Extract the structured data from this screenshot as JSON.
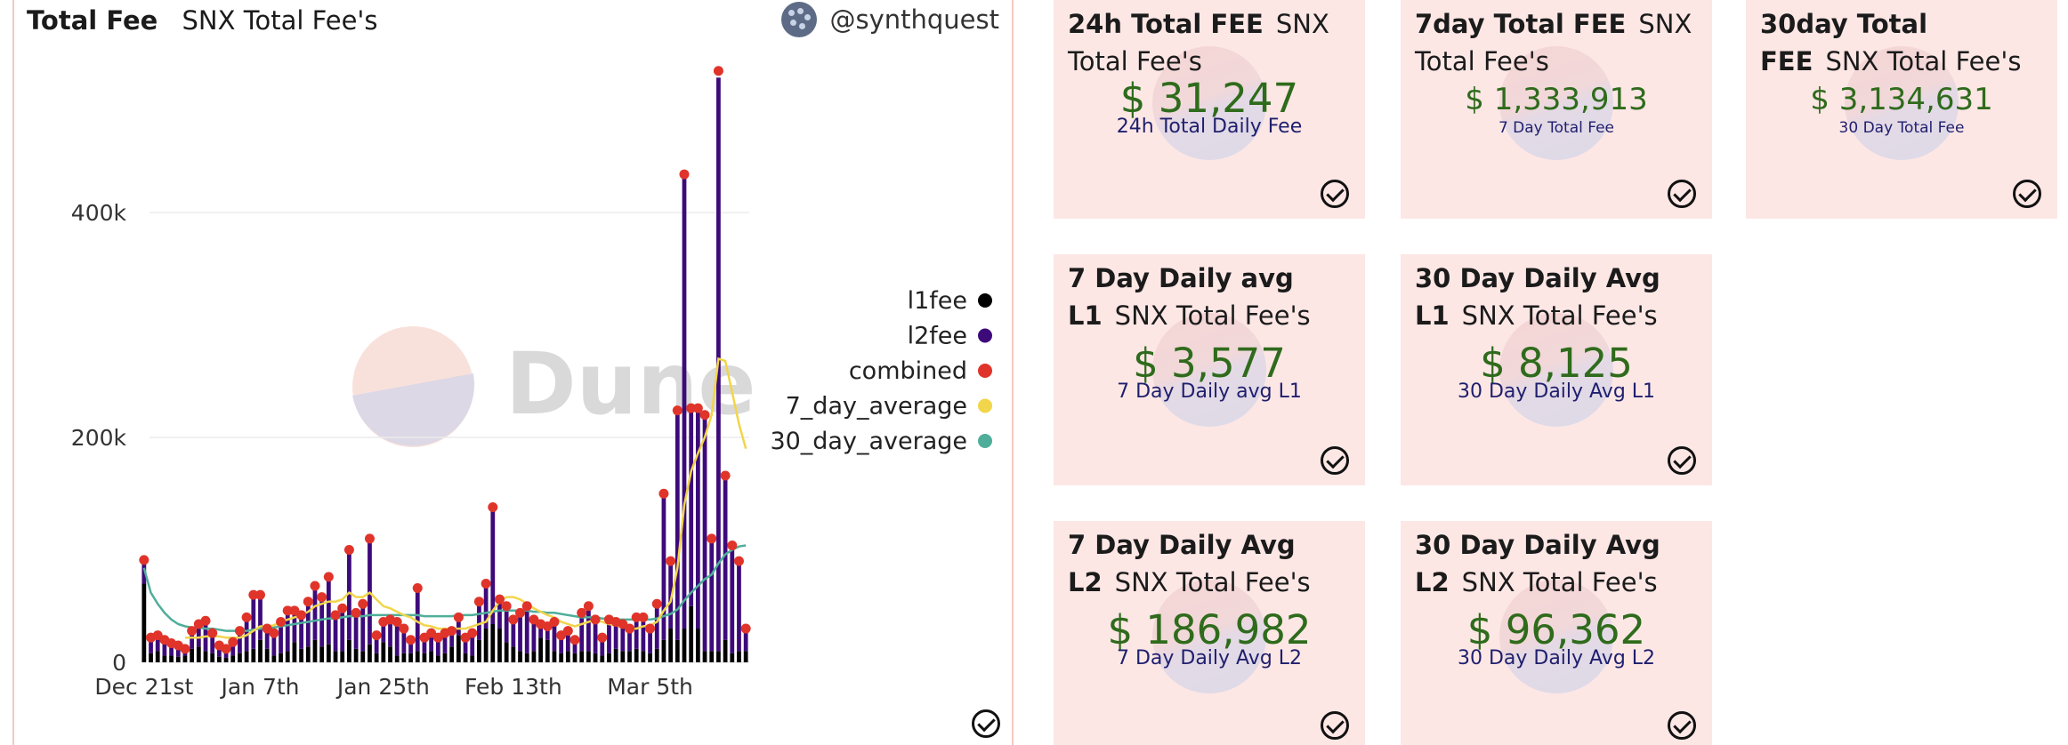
{
  "chart_panel": {
    "title": "Total Fee",
    "subtitle": "SNX Total Fee's",
    "author": "@synthquest",
    "watermark": "Dune",
    "colors": {
      "l1fee": "#000000",
      "l2fee": "#3d0a7a",
      "combined": "#e0342a",
      "seven_day": "#f1d54b",
      "thirty_day": "#4fae9a"
    }
  },
  "chart_data": {
    "type": "bar",
    "title": "",
    "xlabel": "",
    "ylabel": "",
    "ylim": [
      0,
      540000
    ],
    "yticks": [
      0,
      200000,
      400000
    ],
    "ytick_labels": [
      "0",
      "200k",
      "400k"
    ],
    "xtick_labels": [
      "Dec 21st",
      "Jan 7th",
      "Jan 25th",
      "Feb 13th",
      "Mar 5th"
    ],
    "xtick_indices": [
      0,
      17,
      35,
      54,
      74
    ],
    "legend_position": "right",
    "legend": [
      "l1fee",
      "l2fee",
      "combined",
      "7_day_average",
      "30_day_average"
    ],
    "series": [
      {
        "name": "l1fee",
        "values": [
          70000,
          8000,
          10000,
          6000,
          6000,
          5000,
          6000,
          12000,
          14000,
          10000,
          8000,
          5000,
          4000,
          6000,
          8000,
          10000,
          12000,
          20000,
          12000,
          6000,
          8000,
          10000,
          18000,
          12000,
          14000,
          20000,
          14000,
          16000,
          10000,
          10000,
          20000,
          12000,
          10000,
          16000,
          8000,
          18000,
          14000,
          6000,
          8000,
          8000,
          10000,
          8000,
          10000,
          6000,
          8000,
          14000,
          24000,
          8000,
          6000,
          20000,
          30000,
          34000,
          30000,
          18000,
          14000,
          10000,
          8000,
          10000,
          22000,
          20000,
          10000,
          8000,
          10000,
          8000,
          10000,
          10000,
          8000,
          6000,
          8000,
          12000,
          10000,
          10000,
          12000,
          10000,
          8000,
          12000,
          20000,
          30000,
          20000,
          30000,
          50000,
          30000,
          10000,
          10000,
          10000,
          20000,
          8000,
          10000,
          10000
        ]
      },
      {
        "name": "l2fee",
        "values": [
          21000,
          14000,
          14000,
          14000,
          11000,
          10000,
          6000,
          16000,
          20000,
          27000,
          18000,
          10000,
          8000,
          12000,
          20000,
          30000,
          48000,
          40000,
          18000,
          20000,
          28000,
          36000,
          28000,
          30000,
          40000,
          48000,
          44000,
          60000,
          32000,
          38000,
          80000,
          32000,
          42000,
          94000,
          16000,
          18000,
          24000,
          30000,
          22000,
          12000,
          56000,
          14000,
          16000,
          16000,
          18000,
          14000,
          16000,
          14000,
          20000,
          34000,
          40000,
          104000,
          26000,
          32000,
          24000,
          34000,
          42000,
          28000,
          12000,
          12000,
          26000,
          16000,
          18000,
          12000,
          34000,
          40000,
          30000,
          16000,
          30000,
          24000,
          24000,
          20000,
          28000,
          30000,
          22000,
          40000,
          130000,
          60000,
          204000,
          404000,
          176000,
          196000,
          210000,
          100000,
          510000,
          146000,
          96000,
          80000,
          24000
        ]
      },
      {
        "name": "combined",
        "values": [
          91000,
          22000,
          24000,
          20000,
          17000,
          15000,
          12000,
          28000,
          34000,
          37000,
          26000,
          15000,
          12000,
          18000,
          28000,
          40000,
          60000,
          60000,
          30000,
          26000,
          36000,
          46000,
          46000,
          42000,
          54000,
          68000,
          58000,
          76000,
          42000,
          48000,
          100000,
          44000,
          52000,
          110000,
          24000,
          36000,
          38000,
          36000,
          30000,
          20000,
          66000,
          22000,
          26000,
          22000,
          26000,
          28000,
          40000,
          22000,
          26000,
          54000,
          70000,
          138000,
          56000,
          50000,
          38000,
          44000,
          50000,
          38000,
          34000,
          32000,
          36000,
          24000,
          28000,
          20000,
          44000,
          50000,
          38000,
          22000,
          38000,
          36000,
          34000,
          30000,
          40000,
          40000,
          30000,
          52000,
          150000,
          90000,
          224000,
          434000,
          226000,
          226000,
          220000,
          110000,
          526000,
          166000,
          104000,
          90000,
          30000
        ]
      },
      {
        "name": "7_day_average",
        "values": [
          null,
          null,
          null,
          null,
          null,
          null,
          22000,
          22000,
          22000,
          23000,
          23000,
          23000,
          22000,
          22000,
          22000,
          24000,
          28000,
          32000,
          32000,
          33000,
          36000,
          38000,
          40000,
          42000,
          45000,
          50000,
          52000,
          54000,
          54000,
          56000,
          62000,
          58000,
          58000,
          62000,
          56000,
          50000,
          48000,
          45000,
          42000,
          40000,
          36000,
          33000,
          32000,
          30000,
          30000,
          30000,
          30000,
          30000,
          32000,
          34000,
          36000,
          46000,
          54000,
          58000,
          58000,
          56000,
          52000,
          48000,
          45000,
          42000,
          40000,
          36000,
          34000,
          32000,
          34000,
          36000,
          38000,
          36000,
          34000,
          33000,
          32000,
          30000,
          30000,
          32000,
          33000,
          36000,
          46000,
          54000,
          84000,
          140000,
          170000,
          186000,
          200000,
          220000,
          270000,
          268000,
          240000,
          212000,
          190000
        ]
      },
      {
        "name": "30_day_average",
        "values": [
          84000,
          62000,
          52000,
          44000,
          38000,
          34000,
          32000,
          31000,
          31000,
          30000,
          30000,
          29000,
          28000,
          28000,
          28000,
          28000,
          29000,
          30000,
          30000,
          31000,
          32000,
          33000,
          34000,
          35000,
          36000,
          37000,
          38000,
          39000,
          39000,
          40000,
          41000,
          41000,
          41000,
          42000,
          42000,
          42000,
          42000,
          42000,
          42000,
          42000,
          42000,
          41000,
          41000,
          41000,
          41000,
          41000,
          42000,
          42000,
          42000,
          43000,
          44000,
          45000,
          46000,
          46000,
          46000,
          46000,
          46000,
          45000,
          45000,
          44000,
          44000,
          43000,
          42000,
          41000,
          40000,
          40000,
          40000,
          39000,
          39000,
          38000,
          38000,
          38000,
          38000,
          38000,
          38000,
          39000,
          41000,
          43000,
          47000,
          55000,
          62000,
          68000,
          74000,
          78000,
          88000,
          96000,
          100000,
          103000,
          104000
        ]
      }
    ]
  },
  "cards": [
    {
      "title": "24h Total FEE",
      "subtitle": "SNX Total Fee's",
      "value": "$ 31,247",
      "caption": "24h Total Daily Fee"
    },
    {
      "title": "7day Total FEE",
      "subtitle": "SNX Total Fee's",
      "value": "$ 1,333,913",
      "caption": "7 Day Total Fee"
    },
    {
      "title": "30day Total FEE",
      "subtitle": "SNX Total Fee's",
      "value": "$ 3,134,631",
      "caption": "30 Day Total Fee"
    },
    {
      "title": "7 Day Daily avg L1",
      "subtitle": "SNX Total Fee's",
      "value": "$ 3,577",
      "caption": "7 Day Daily avg L1"
    },
    {
      "title": "30 Day Daily Avg L1",
      "subtitle": "SNX Total Fee's",
      "value": "$ 8,125",
      "caption": "30 Day Daily Avg L1"
    },
    {
      "title": "7 Day Daily Avg L2",
      "subtitle": "SNX Total Fee's",
      "value": "$ 186,982",
      "caption": "7 Day Daily Avg L2"
    },
    {
      "title": "30 Day Daily Avg L2",
      "subtitle": "SNX Total Fee's",
      "value": "$ 96,362",
      "caption": "30 Day Daily Avg L2"
    }
  ]
}
